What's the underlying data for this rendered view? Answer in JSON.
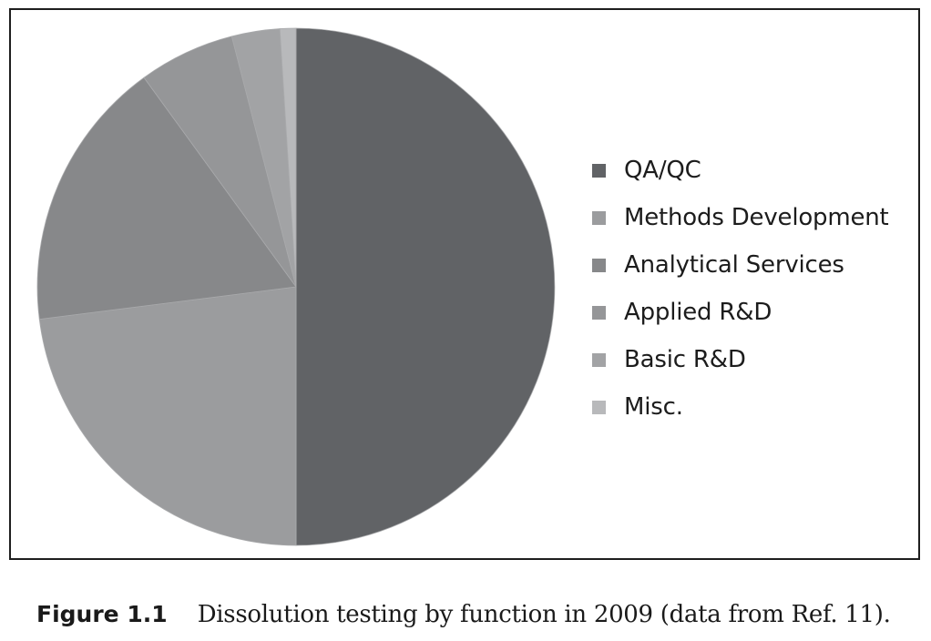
{
  "chart_data": {
    "type": "pie",
    "categories": [
      "QA/QC",
      "Methods Development",
      "Analytical Services",
      "Applied R&D",
      "Basic R&D",
      "Misc."
    ],
    "values": [
      50,
      23,
      17,
      6,
      3,
      1
    ],
    "unit": "%",
    "colors": [
      "#616366",
      "#9b9c9e",
      "#87888a",
      "#959698",
      "#a2a3a5",
      "#b8b9bb"
    ],
    "start_angle_deg": 0,
    "direction": "clockwise",
    "legend": {
      "position": "right",
      "labels": [
        "QA/QC",
        "Methods Development",
        "Analytical Services",
        "Applied R&D",
        "Basic R&D",
        "Misc."
      ]
    }
  },
  "caption": {
    "label": "Figure 1.1",
    "text": "Dissolution testing by function in 2009 (data from Ref. 11)."
  }
}
